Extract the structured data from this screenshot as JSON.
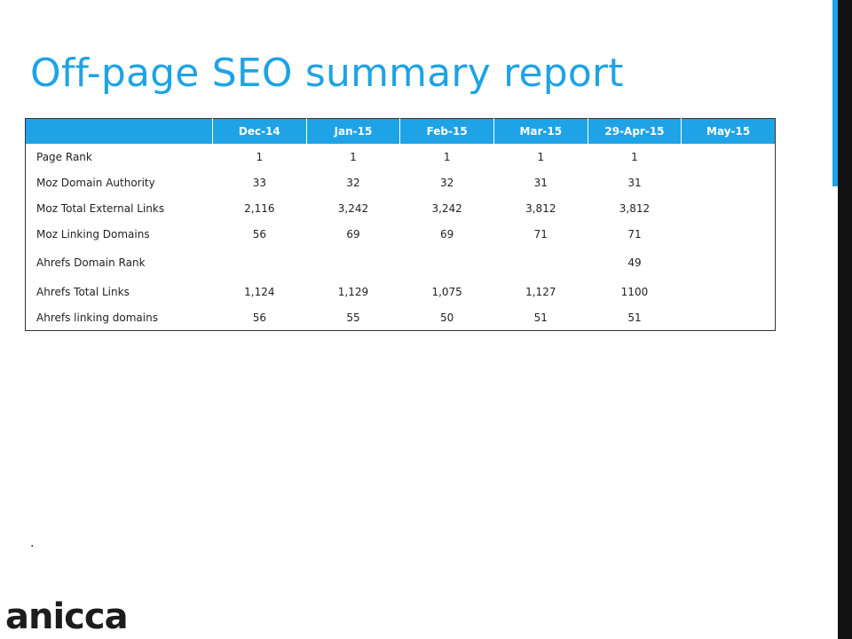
{
  "title": "Off-page SEO summary report",
  "table": {
    "headers": [
      "",
      "Dec-14",
      "Jan-15",
      "Feb-15",
      "Mar-15",
      "29-Apr-15",
      "May-15"
    ],
    "rows": [
      {
        "label": "Page Rank",
        "values": [
          "1",
          "1",
          "1",
          "1",
          "1",
          ""
        ]
      },
      {
        "label": "Moz Domain Authority",
        "values": [
          "33",
          "32",
          "32",
          "31",
          "31",
          ""
        ]
      },
      {
        "label": "Moz Total External Links",
        "values": [
          "2,116",
          "3,242",
          "3,242",
          "3,812",
          "3,812",
          ""
        ]
      },
      {
        "label": "Moz Linking Domains",
        "values": [
          "56",
          "69",
          "69",
          "71",
          "71",
          ""
        ]
      },
      {
        "label": "Ahrefs Domain Rank",
        "values": [
          "",
          "",
          "",
          "",
          "49",
          ""
        ]
      },
      {
        "label": "Ahrefs Total Links",
        "values": [
          "1,124",
          "1,129",
          "1,075",
          "1,127",
          "1100",
          ""
        ]
      },
      {
        "label": "Ahrefs linking domains",
        "values": [
          "56",
          "55",
          "50",
          "51",
          "51",
          ""
        ]
      }
    ]
  },
  "footnote": ".",
  "logo": "anicca",
  "colors": {
    "accent": "#1ea3e6",
    "sidebar": "#111111"
  }
}
